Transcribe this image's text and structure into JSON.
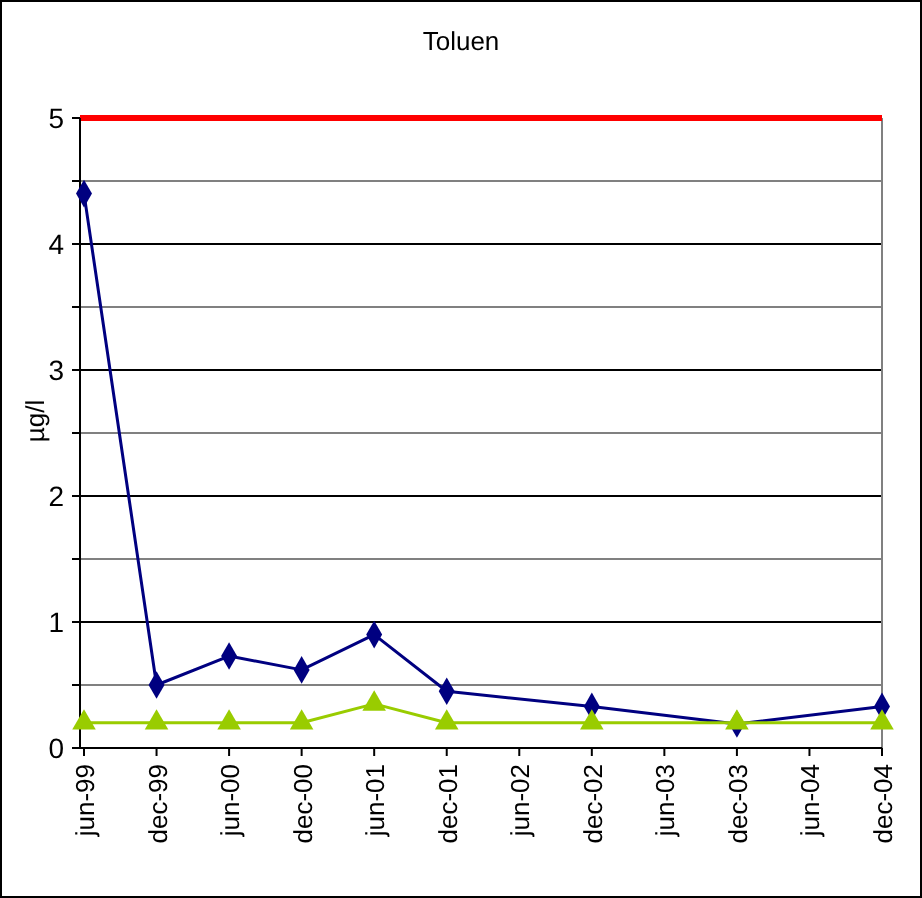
{
  "chart_data": {
    "type": "line",
    "title": "Toluen",
    "ylabel": "µg/l",
    "categories": [
      "jun-99",
      "dec-99",
      "jun-00",
      "dec-00",
      "jun-01",
      "dec-01",
      "jun-02",
      "dec-02",
      "jun-03",
      "dec-03",
      "jun-04",
      "dec-04"
    ],
    "series": [
      {
        "color": "#000080",
        "marker": "diamond",
        "values": [
          4.4,
          0.5,
          0.73,
          0.62,
          0.9,
          0.45,
          null,
          0.33,
          null,
          0.19,
          null,
          0.33
        ]
      },
      {
        "color": "#99cc00",
        "marker": "triangle",
        "values": [
          0.2,
          0.2,
          0.2,
          0.2,
          0.35,
          0.2,
          null,
          0.2,
          null,
          0.2,
          null,
          0.2
        ]
      }
    ],
    "ylim": [
      0,
      5
    ],
    "yticks": [
      0,
      {
        "value": 0.5,
        "label": null
      },
      1,
      {
        "value": 1.5,
        "label": null
      },
      2,
      {
        "value": 2.5,
        "label": null
      },
      3,
      {
        "value": 3.5,
        "label": null
      },
      4,
      {
        "value": 4.5,
        "label": null
      },
      5
    ],
    "grid": "y",
    "line_style": "solid",
    "ref_lines": [
      {
        "axis": "y",
        "value": 5,
        "label": null,
        "color": "#ff0000"
      }
    ]
  }
}
